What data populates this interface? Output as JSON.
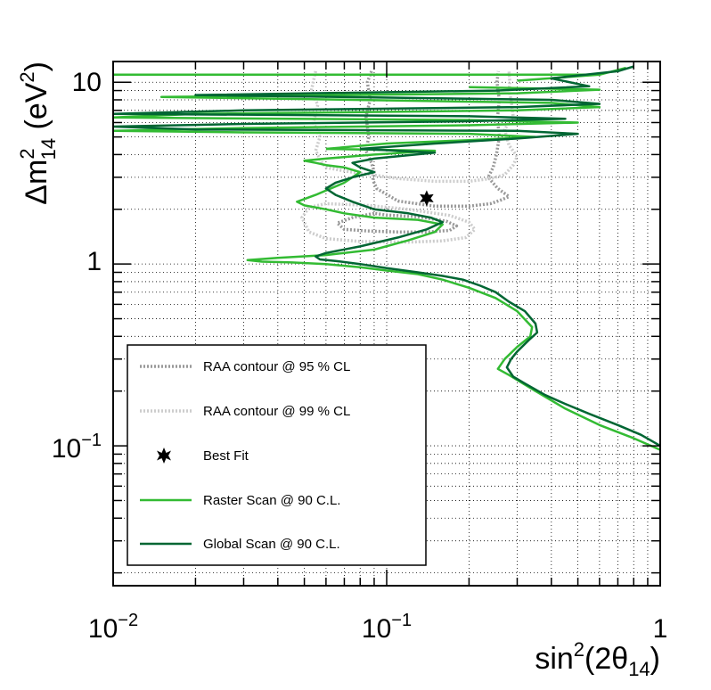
{
  "chart_data": {
    "type": "line",
    "title": "",
    "x_scale": "log",
    "y_scale": "log",
    "xlim": [
      0.01,
      1
    ],
    "ylim": [
      0.017,
      13
    ],
    "grid": true,
    "legend_position": "bottom-left",
    "xlabel": {
      "base": "sin",
      "sup": "2",
      "mid": "(2θ",
      "sub": "14",
      "end": ")"
    },
    "ylabel": {
      "base": "Δm",
      "sup": "2",
      "sub": "14",
      "mid": " (eV",
      "sup2": "2",
      "end": ")"
    },
    "x_ticks": [
      {
        "base": "10",
        "exp": "−2",
        "value": 0.01
      },
      {
        "base": "10",
        "exp": "−1",
        "value": 0.1
      },
      {
        "base": "1",
        "exp": "",
        "value": 1
      }
    ],
    "y_ticks": [
      {
        "base": "10",
        "exp": "−1",
        "value": 0.1
      },
      {
        "base": "1",
        "exp": "",
        "value": 1
      },
      {
        "base": "10",
        "exp": "",
        "value": 10
      }
    ],
    "best_fit": {
      "x": 0.14,
      "y": 2.3
    },
    "series": [
      {
        "name": "RAA contour @ 95 % CL",
        "color": "#999999",
        "style": "dotted",
        "width": 3.5,
        "segments": [
          {
            "x": [
              0.088,
              0.085,
              0.087,
              0.084,
              0.086,
              0.084,
              0.088,
              0.09,
              0.089,
              0.092,
              0.11,
              0.15,
              0.2,
              0.24,
              0.262,
              0.28,
              0.255,
              0.235,
              0.245,
              0.252,
              0.258,
              0.254,
              0.258,
              0.253,
              0.256
            ],
            "y": [
              11.5,
              10,
              8,
              6.5,
              5,
              4.2,
              3.6,
              3.2,
              2.9,
              2.6,
              2.22,
              2.08,
              2.08,
              2.15,
              2.25,
              2.35,
              2.6,
              3.0,
              3.4,
              4.0,
              5,
              6.3,
              8,
              10,
              11.5
            ]
          },
          {
            "x": [
              0.09,
              0.075,
              0.066,
              0.07,
              0.085,
              0.11,
              0.14,
              0.17,
              0.18,
              0.165,
              0.13,
              0.1,
              0.09
            ],
            "y": [
              1.9,
              1.8,
              1.68,
              1.55,
              1.52,
              1.5,
              1.5,
              1.53,
              1.62,
              1.72,
              1.82,
              1.86,
              1.9
            ]
          }
        ]
      },
      {
        "name": "RAA contour @ 99 % CL",
        "color": "#cccccc",
        "style": "dotted",
        "width": 3.5,
        "segments": [
          {
            "x": [
              0.055,
              0.053,
              0.056,
              0.054,
              0.057,
              0.055,
              0.058,
              0.06,
              0.07,
              0.085,
              0.11,
              0.15,
              0.2,
              0.24,
              0.27,
              0.29,
              0.3,
              0.28,
              0.27,
              0.29,
              0.285,
              0.28,
              0.282,
              0.28
            ],
            "y": [
              11.5,
              9,
              7.5,
              6,
              5,
              4.2,
              3.6,
              3.4,
              3.25,
              3.12,
              2.95,
              2.85,
              2.85,
              2.95,
              3.1,
              3.5,
              3.9,
              4.5,
              5.5,
              6.5,
              8,
              9,
              10,
              11.5
            ]
          },
          {
            "x": [
              0.06,
              0.052,
              0.049,
              0.052,
              0.06,
              0.08,
              0.12,
              0.16,
              0.195,
              0.21,
              0.2,
              0.17,
              0.12,
              0.085,
              0.06
            ],
            "y": [
              2.15,
              2.05,
              1.8,
              1.5,
              1.38,
              1.33,
              1.32,
              1.34,
              1.4,
              1.55,
              1.7,
              1.85,
              2.0,
              2.1,
              2.15
            ]
          }
        ]
      },
      {
        "name": "Raster Scan @ 90 C.L.",
        "color": "#33bb33",
        "style": "solid",
        "width": 2.5,
        "segments": [
          {
            "x": [
              1.0,
              0.8,
              0.6,
              0.45,
              0.35,
              0.28,
              0.255,
              0.27,
              0.3,
              0.335,
              0.34,
              0.3,
              0.25,
              0.2,
              0.16,
              0.13,
              0.1,
              0.08,
              0.06,
              0.045,
              0.035,
              0.031,
              0.04,
              0.06,
              0.09,
              0.12,
              0.15,
              0.16,
              0.13,
              0.09,
              0.07,
              0.06,
              0.05,
              0.047,
              0.055,
              0.07,
              0.08,
              0.07,
              0.06,
              0.055,
              0.05,
              0.06,
              0.09,
              0.15,
              0.06
            ],
            "y": [
              0.095,
              0.11,
              0.13,
              0.16,
              0.2,
              0.245,
              0.265,
              0.3,
              0.35,
              0.4,
              0.45,
              0.55,
              0.65,
              0.74,
              0.82,
              0.88,
              0.92,
              0.96,
              1.0,
              1.02,
              1.03,
              1.05,
              1.08,
              1.12,
              1.2,
              1.35,
              1.5,
              1.65,
              1.75,
              1.8,
              1.9,
              2.0,
              2.1,
              2.2,
              2.4,
              2.8,
              3.2,
              3.4,
              3.5,
              3.6,
              3.7,
              3.8,
              4.0,
              4.2,
              4.3
            ]
          },
          {
            "x": [
              0.06,
              0.1,
              0.2,
              0.35,
              0.2,
              0.03,
              0.01,
              0.03,
              0.2,
              0.5,
              0.2,
              0.01,
              0.02,
              0.3,
              0.6,
              0.4,
              0.015,
              0.3,
              0.6,
              0.2
            ],
            "y": [
              4.3,
              4.6,
              4.8,
              5.0,
              5.2,
              5.3,
              5.4,
              5.6,
              5.8,
              6.0,
              6.2,
              6.4,
              6.7,
              7.0,
              7.3,
              7.7,
              8.3,
              8.7,
              9.1,
              9.4
            ]
          },
          {
            "x": [
              0.01,
              0.6
            ],
            "y": [
              11.0,
              11.0
            ]
          },
          {
            "x": [
              0.3,
              0.6,
              0.75
            ],
            "y": [
              10.2,
              11.0,
              12.0
            ]
          }
        ]
      },
      {
        "name": "Global Scan @ 90 C.L.",
        "color": "#006633",
        "style": "solid",
        "width": 2.5,
        "segments": [
          {
            "x": [
              1.0,
              0.85,
              0.7,
              0.55,
              0.45,
              0.38,
              0.32,
              0.29,
              0.275,
              0.285,
              0.3,
              0.33,
              0.355,
              0.35,
              0.32,
              0.28,
              0.25,
              0.22,
              0.19,
              0.16,
              0.13,
              0.1,
              0.08,
              0.065,
              0.057,
              0.055,
              0.06,
              0.08,
              0.11,
              0.14,
              0.16,
              0.145,
              0.12,
              0.09,
              0.075,
              0.065,
              0.06,
              0.065,
              0.075,
              0.09,
              0.08,
              0.075,
              0.09,
              0.15,
              0.08
            ],
            "y": [
              0.1,
              0.115,
              0.13,
              0.15,
              0.17,
              0.19,
              0.22,
              0.24,
              0.27,
              0.3,
              0.33,
              0.38,
              0.42,
              0.47,
              0.55,
              0.62,
              0.7,
              0.76,
              0.82,
              0.86,
              0.9,
              0.95,
              1.0,
              1.04,
              1.06,
              1.1,
              1.15,
              1.25,
              1.4,
              1.55,
              1.7,
              1.8,
              1.9,
              2.0,
              2.2,
              2.4,
              2.6,
              2.8,
              3.0,
              3.2,
              3.4,
              3.6,
              3.8,
              4.1,
              4.3
            ]
          },
          {
            "x": [
              0.08,
              0.15,
              0.3,
              0.5,
              0.3,
              0.02,
              0.01,
              0.03,
              0.2,
              0.45,
              0.2,
              0.01,
              0.03,
              0.3,
              0.6,
              0.4,
              0.02,
              0.25,
              0.55,
              0.4,
              0.7,
              0.8
            ],
            "y": [
              4.3,
              4.6,
              4.9,
              5.2,
              5.4,
              5.5,
              5.7,
              5.9,
              6.1,
              6.3,
              6.5,
              6.7,
              7.0,
              7.3,
              7.6,
              8.0,
              8.5,
              9.0,
              9.5,
              10.5,
              11.5,
              12.2
            ]
          }
        ]
      }
    ]
  }
}
